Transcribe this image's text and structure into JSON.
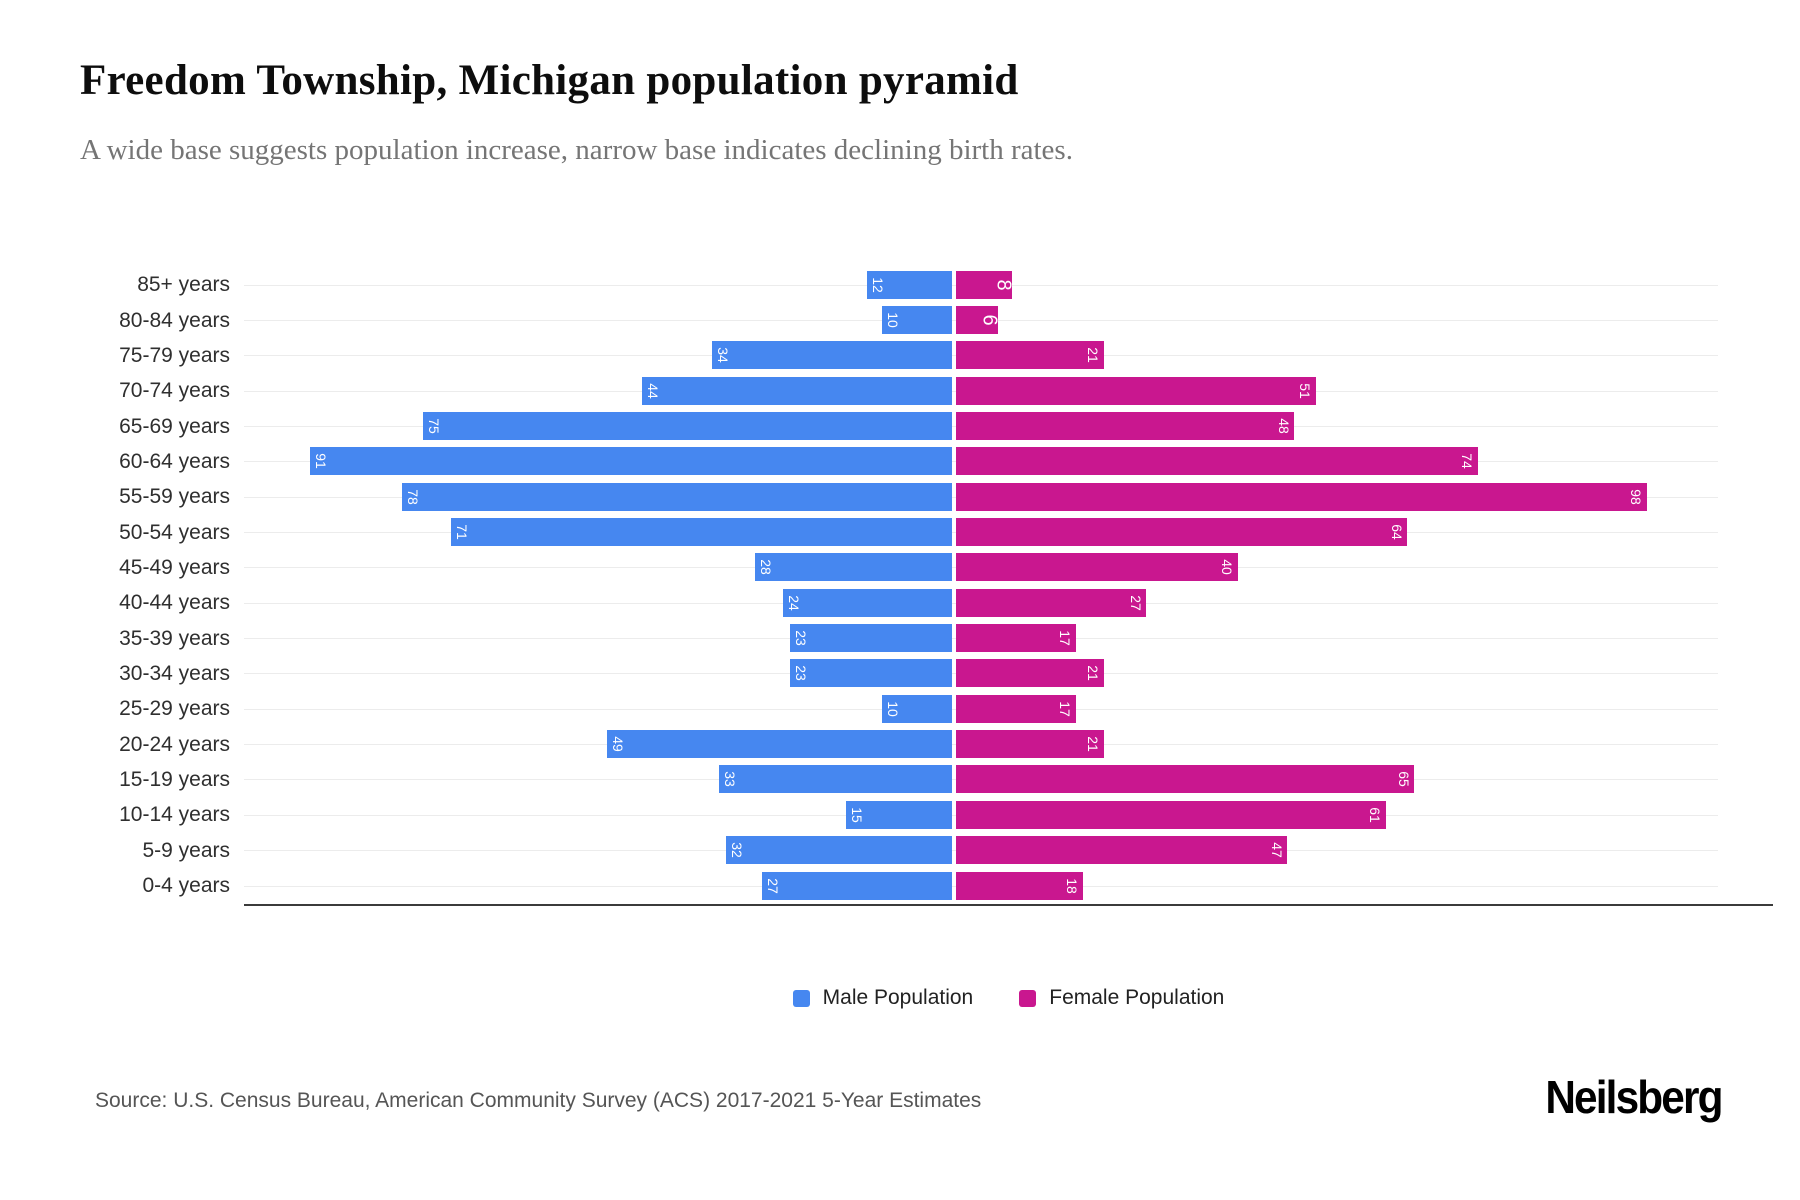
{
  "header": {
    "title": "Freedom Township, Michigan population pyramid",
    "subtitle": "A wide base suggests population increase, narrow base indicates declining birth rates."
  },
  "chart_data": {
    "type": "bar",
    "variant": "population-pyramid",
    "title": "Freedom Township, Michigan population pyramid",
    "categories": [
      "85+ years",
      "80-84 years",
      "75-79 years",
      "70-74 years",
      "65-69 years",
      "60-64 years",
      "55-59 years",
      "50-54 years",
      "45-49 years",
      "40-44 years",
      "35-39 years",
      "30-34 years",
      "25-29 years",
      "20-24 years",
      "15-19 years",
      "10-14 years",
      "5-9 years",
      "0-4 years"
    ],
    "series": [
      {
        "name": "Male Population",
        "color": "#4687F0",
        "values": [
          12,
          10,
          34,
          44,
          75,
          91,
          78,
          71,
          28,
          24,
          23,
          23,
          10,
          49,
          33,
          15,
          32,
          27
        ]
      },
      {
        "name": "Female Population",
        "color": "#C9178F",
        "values": [
          8,
          6,
          21,
          51,
          48,
          74,
          98,
          64,
          40,
          27,
          17,
          21,
          17,
          21,
          65,
          61,
          47,
          18
        ]
      }
    ],
    "value_labels": "inside bar ends, rotated 90deg, white",
    "grid": true,
    "gridline_color": "#ececec",
    "axis_line_color": "#3b3b3b",
    "legend_position": "bottom-center"
  },
  "legend": {
    "items": [
      {
        "label": "Male Population",
        "color": "#4687F0"
      },
      {
        "label": "Female Population",
        "color": "#C9178F"
      }
    ]
  },
  "footer": {
    "source": "Source: U.S. Census Bureau, American Community Survey (ACS) 2017-2021 5-Year Estimates",
    "brand": "Neilsberg"
  }
}
